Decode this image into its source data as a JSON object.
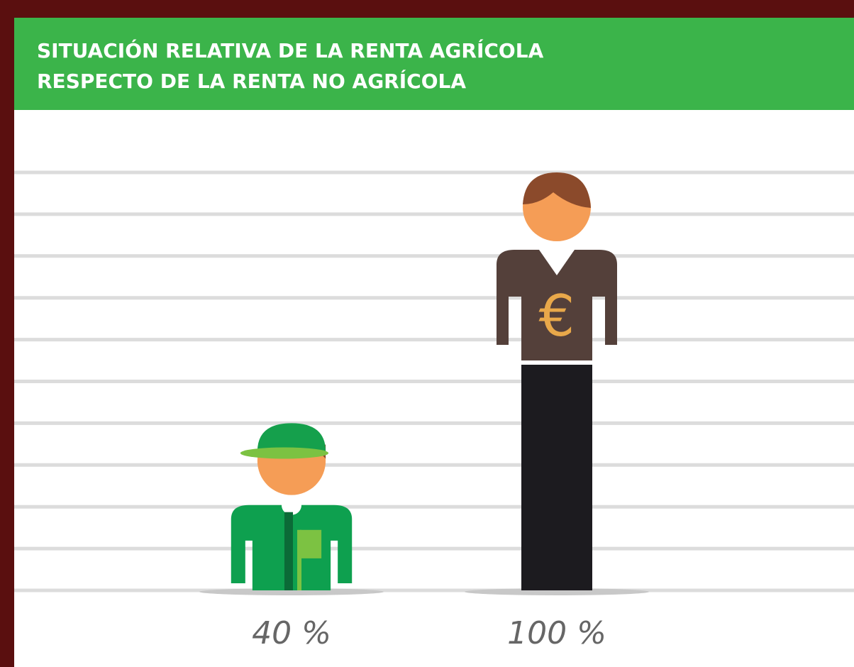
{
  "chart_data": {
    "type": "pictogram",
    "title": [
      "SITUACIÓN RELATIVA DE LA RENTA AGRÍCOLA",
      "RESPECTO DE LA RENTA NO AGRÍCOLA"
    ],
    "values": [
      40,
      100
    ],
    "value_labels": [
      "40 %",
      "100 %"
    ],
    "colors": [
      "#0ea04f",
      "#54403a"
    ],
    "ylim": [
      0,
      100
    ],
    "yticks": [
      0,
      10,
      20,
      30,
      40,
      50,
      60,
      70,
      80,
      90,
      100
    ],
    "grid": true
  }
}
